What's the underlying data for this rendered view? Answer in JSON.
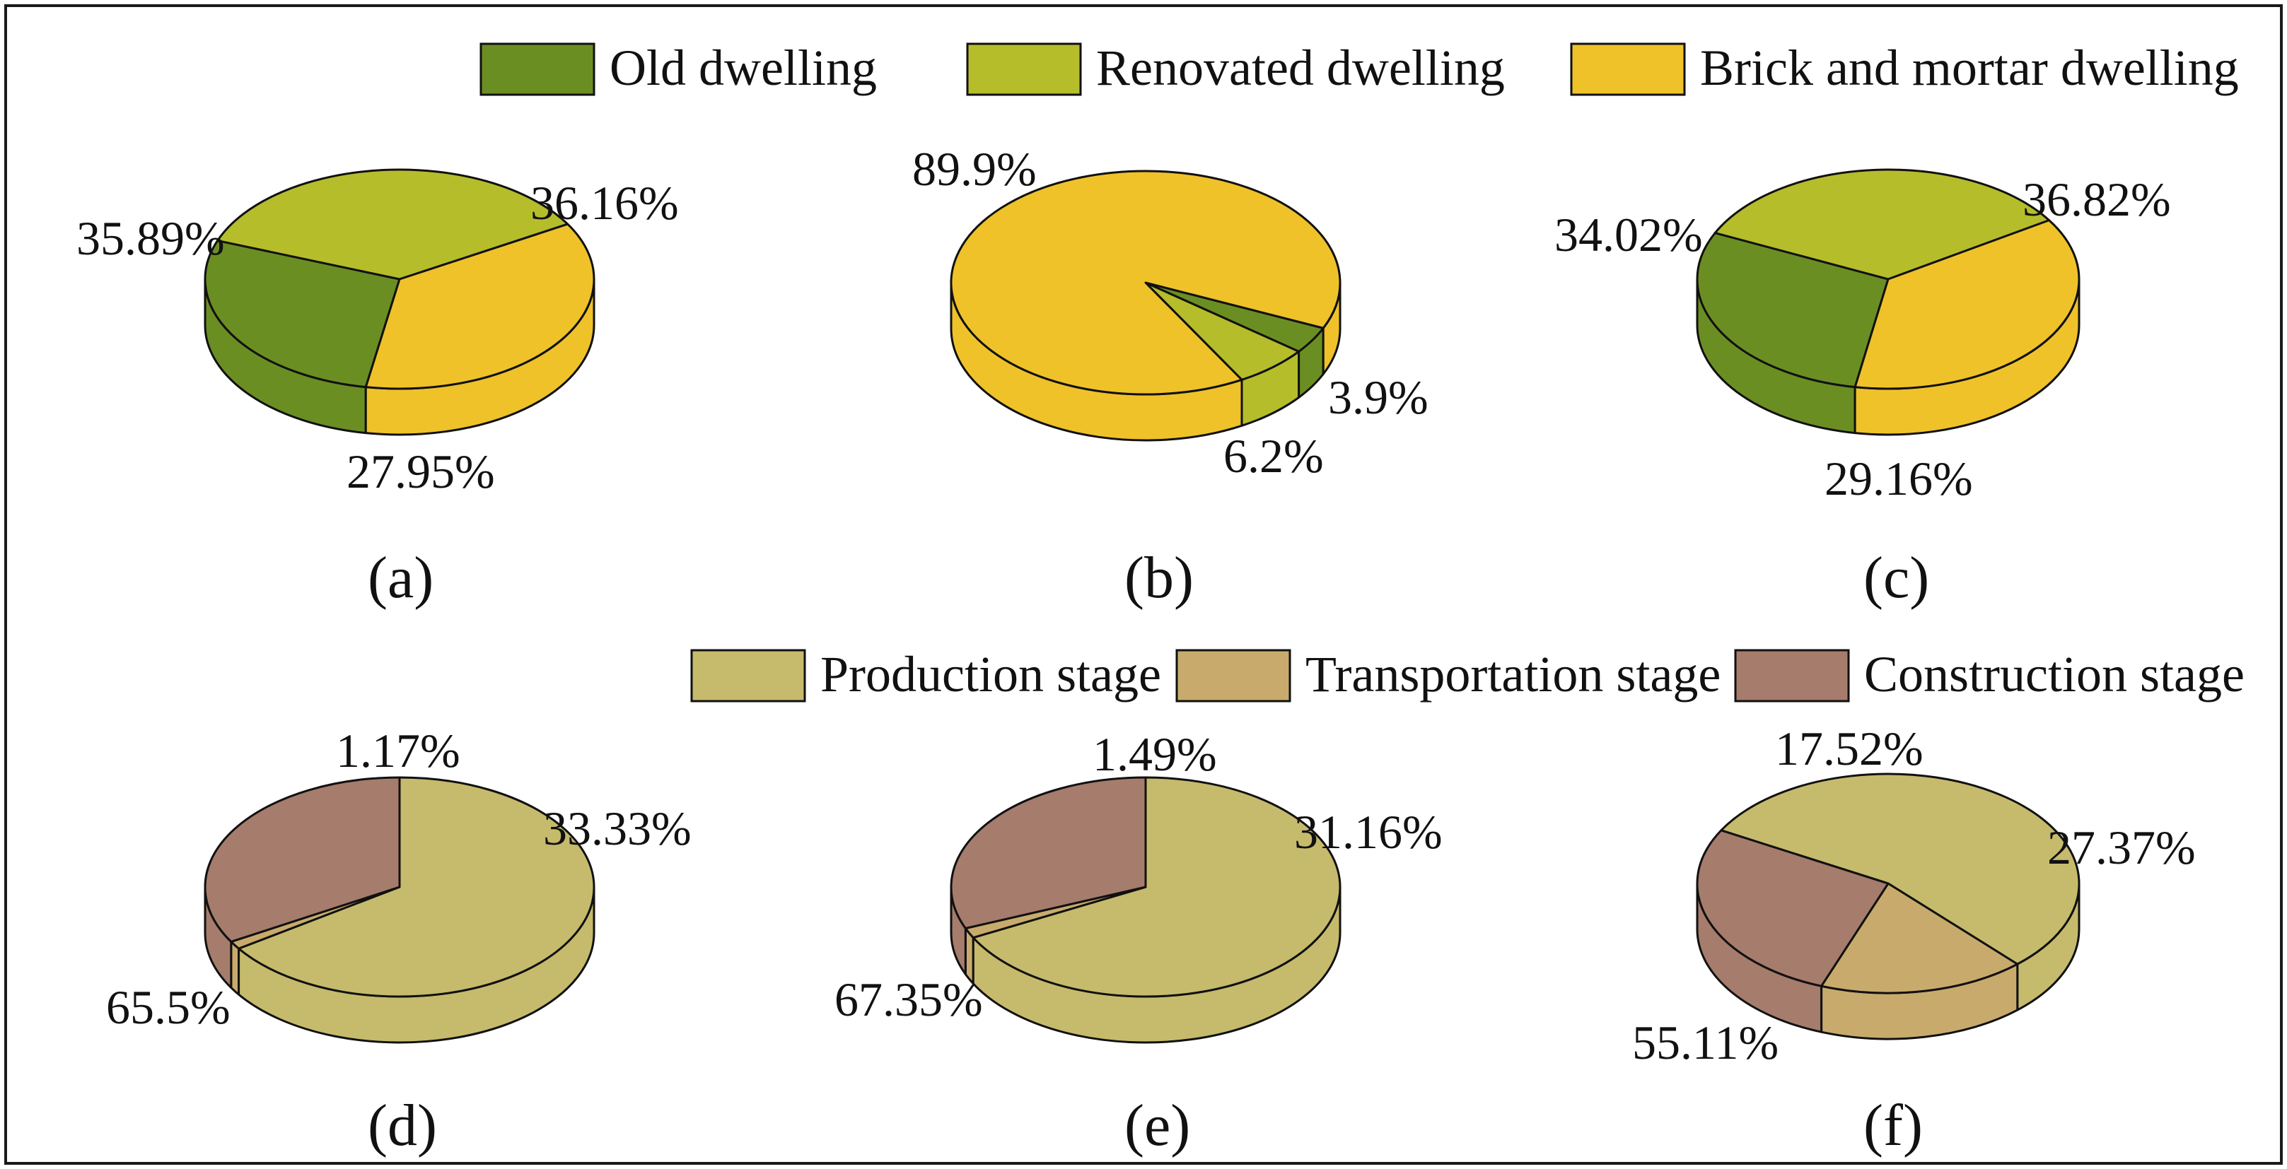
{
  "legends": [
    {
      "id": "legend-dwelling",
      "items": [
        {
          "label": "Old dwelling",
          "color": "#6b8e23"
        },
        {
          "label": "Renovated dwelling",
          "color": "#b5bd2b"
        },
        {
          "label": "Brick and mortar dwelling",
          "color": "#efc22a"
        }
      ]
    },
    {
      "id": "legend-stage",
      "items": [
        {
          "label": "Production stage",
          "color": "#c6bb6c"
        },
        {
          "label": "Transportation stage",
          "color": "#c8ab6c"
        },
        {
          "label": "Construction stage",
          "color": "#a67c6c"
        }
      ]
    }
  ],
  "chart_data": [
    {
      "type": "pie",
      "panel_label": "(a)",
      "legend": "legend-dwelling",
      "categories": [
        "Old dwelling",
        "Renovated dwelling",
        "Brick and mortar dwelling"
      ],
      "values": [
        27.95,
        35.89,
        36.16
      ],
      "data_labels": [
        "27.95%",
        "35.89%",
        "36.16%"
      ]
    },
    {
      "type": "pie",
      "panel_label": "(b)",
      "legend": "legend-dwelling",
      "categories": [
        "Old dwelling",
        "Renovated dwelling",
        "Brick and mortar dwelling"
      ],
      "values": [
        3.9,
        6.2,
        89.9
      ],
      "data_labels": [
        "3.9%",
        "6.2%",
        "89.9%"
      ]
    },
    {
      "type": "pie",
      "panel_label": "(c)",
      "legend": "legend-dwelling",
      "categories": [
        "Old dwelling",
        "Renovated dwelling",
        "Brick and mortar dwelling"
      ],
      "values": [
        29.16,
        34.02,
        36.82
      ],
      "data_labels": [
        "29.16%",
        "34.02%",
        "36.82%"
      ]
    },
    {
      "type": "pie",
      "panel_label": "(d)",
      "legend": "legend-stage",
      "categories": [
        "Production stage",
        "Transportation stage",
        "Construction stage"
      ],
      "values": [
        65.5,
        1.17,
        33.33
      ],
      "data_labels": [
        "65.5%",
        "1.17%",
        "33.33%"
      ]
    },
    {
      "type": "pie",
      "panel_label": "(e)",
      "legend": "legend-stage",
      "categories": [
        "Production stage",
        "Transportation stage",
        "Construction stage"
      ],
      "values": [
        67.35,
        1.49,
        31.16
      ],
      "data_labels": [
        "67.35%",
        "1.49%",
        "31.16%"
      ]
    },
    {
      "type": "pie",
      "panel_label": "(f)",
      "legend": "legend-stage",
      "categories": [
        "Production stage",
        "Transportation stage",
        "Construction stage"
      ],
      "values": [
        55.11,
        17.52,
        27.37
      ],
      "data_labels": [
        "55.11%",
        "17.52%",
        "27.37%"
      ]
    }
  ]
}
